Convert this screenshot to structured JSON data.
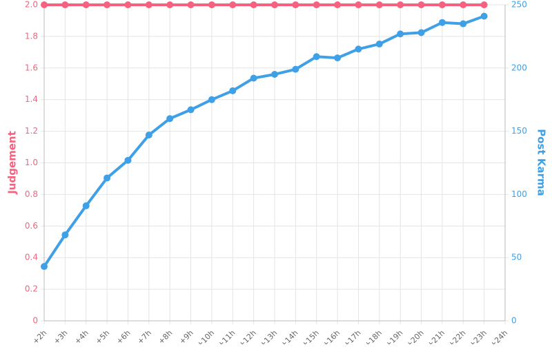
{
  "chart_data": {
    "type": "line",
    "categories": [
      "+2h",
      "+3h",
      "+4h",
      "+5h",
      "+6h",
      "+7h",
      "+8h",
      "+9h",
      "+10h",
      "+11h",
      "+12h",
      "+13h",
      "+14h",
      "+15h",
      "+16h",
      "+17h",
      "+18h",
      "+19h",
      "+20h",
      "+21h",
      "+22h",
      "+23h",
      "+24h"
    ],
    "series": [
      {
        "name": "Judgement",
        "color": "#f7617f",
        "axis": "y",
        "values": [
          2,
          2,
          2,
          2,
          2,
          2,
          2,
          2,
          2,
          2,
          2,
          2,
          2,
          2,
          2,
          2,
          2,
          2,
          2,
          2,
          2,
          2,
          null
        ]
      },
      {
        "name": "Post Karma",
        "color": "#3fa0e6",
        "axis": "y2",
        "values": [
          43,
          68,
          91,
          113,
          127,
          147,
          160,
          167,
          175,
          182,
          192,
          195,
          199,
          209,
          208,
          215,
          219,
          227,
          228,
          236,
          235,
          241,
          null
        ]
      }
    ],
    "ylabel": "Judgement",
    "y2label": "Post Karma",
    "ylim": [
      0,
      2
    ],
    "yticks": [
      0,
      0.2,
      0.4,
      0.6,
      0.8,
      {
        "value": 1,
        "label": "1.0"
      },
      1.2,
      1.4,
      1.6,
      1.8,
      {
        "value": 2,
        "label": "2.0"
      }
    ],
    "y2lim": [
      0,
      250
    ],
    "y2ticks": [
      0,
      50,
      100,
      150,
      200,
      250
    ],
    "grid": true
  }
}
